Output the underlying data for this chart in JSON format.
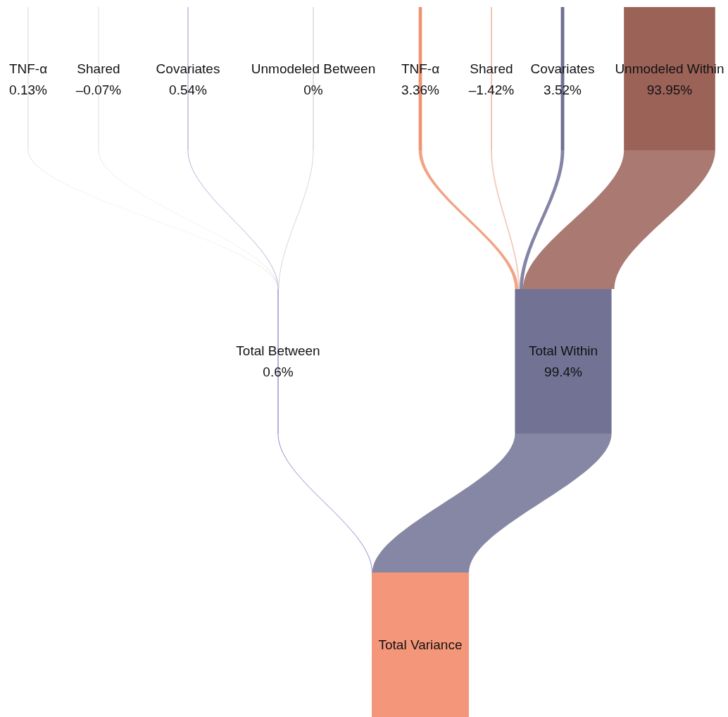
{
  "chart_data": {
    "type": "other",
    "categories": [
      "TNF-α",
      "Shared",
      "Covariates",
      "Unmodeled Between",
      "TNF-α",
      "Shared",
      "Covariates",
      "Unmodeled Within",
      "Total Between",
      "Total Within",
      "Total Variance"
    ],
    "values": [
      0.13,
      -0.07,
      0.54,
      0,
      3.36,
      -1.42,
      3.52,
      93.95,
      0.6,
      99.4,
      null
    ],
    "value_labels": [
      "0.13%",
      "–0.07%",
      "0.54%",
      "0%",
      "3.36%",
      "–1.42%",
      "3.52%",
      "93.95%",
      "0.6%",
      "99.4%",
      null
    ],
    "colors": [
      "#e6ddd6",
      "#e4e4e4",
      "#a9a9d6",
      "#cfcfcf",
      "#f0936f",
      "#f3c3b2",
      "#6f6f94",
      "#9b6258",
      "#7b7bd0",
      "#717294",
      "#f4967a"
    ]
  }
}
